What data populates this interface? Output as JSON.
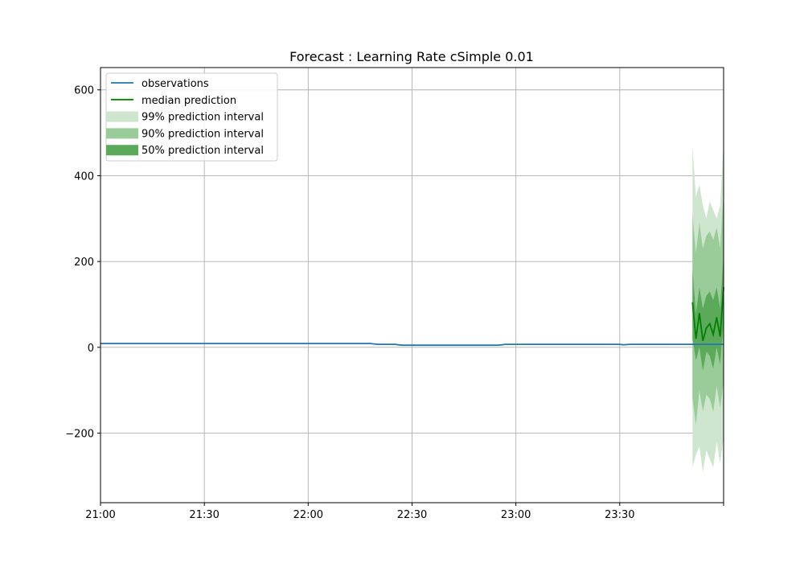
{
  "chart_data": {
    "type": "line",
    "title": "Forecast : Learning Rate cSimple 0.01",
    "xlabel": "",
    "ylabel": "",
    "x_axis": {
      "kind": "time",
      "range": [
        "21:00",
        "00:00"
      ],
      "ticks": [
        "21:00",
        "21:30",
        "22:00",
        "22:30",
        "23:00",
        "23:30",
        ""
      ]
    },
    "y_axis": {
      "range": [
        -362,
        652
      ],
      "ticks": [
        -200,
        0,
        200,
        400,
        600
      ],
      "tick_labels": [
        "−200",
        "0",
        "200",
        "400",
        "600"
      ]
    },
    "grid": true,
    "legend_placement": "top-left",
    "legend": [
      "observations",
      "median prediction",
      "99% prediction interval",
      "90% prediction interval",
      "50% prediction interval"
    ],
    "colors": {
      "observations": "#1f77b4",
      "median": "#008000",
      "band99": "#cde6cd",
      "band90": "#99cc99",
      "band50": "#5aaa5a"
    },
    "observations": {
      "x": [
        "21:00",
        "21:10",
        "21:20",
        "21:30",
        "21:40",
        "21:50",
        "22:00",
        "22:10",
        "22:18",
        "22:20",
        "22:25",
        "22:27",
        "22:35",
        "22:45",
        "22:50",
        "22:55",
        "22:57",
        "23:00",
        "23:10",
        "23:20",
        "23:30",
        "23:31",
        "23:33",
        "23:40",
        "23:50",
        "23:55",
        "00:00"
      ],
      "y": [
        9,
        9,
        9,
        9,
        9,
        9,
        9,
        9,
        9,
        7,
        7,
        5,
        5,
        5,
        5,
        5,
        7,
        7,
        7,
        7,
        7,
        6,
        7,
        7,
        7,
        7,
        7
      ]
    },
    "forecast": {
      "x": [
        "23:51",
        "23:52",
        "23:53",
        "23:54",
        "23:55",
        "23:56",
        "23:57",
        "23:58",
        "23:59",
        "00:00"
      ],
      "median": [
        105,
        20,
        80,
        15,
        45,
        55,
        30,
        70,
        25,
        140
      ],
      "p50_low": [
        20,
        -30,
        0,
        -55,
        -10,
        -20,
        -50,
        0,
        -40,
        60
      ],
      "p50_high": [
        180,
        80,
        140,
        90,
        120,
        130,
        110,
        140,
        90,
        220
      ],
      "p90_low": [
        -120,
        -180,
        -100,
        -150,
        -110,
        -120,
        -150,
        -90,
        -140,
        -80
      ],
      "p90_high": [
        310,
        220,
        290,
        230,
        260,
        270,
        250,
        280,
        230,
        360
      ],
      "p99_low": [
        -280,
        -250,
        -230,
        -290,
        -240,
        -260,
        -280,
        -220,
        -270,
        -210
      ],
      "p99_high": [
        470,
        350,
        380,
        330,
        300,
        340,
        320,
        300,
        330,
        480
      ]
    }
  }
}
